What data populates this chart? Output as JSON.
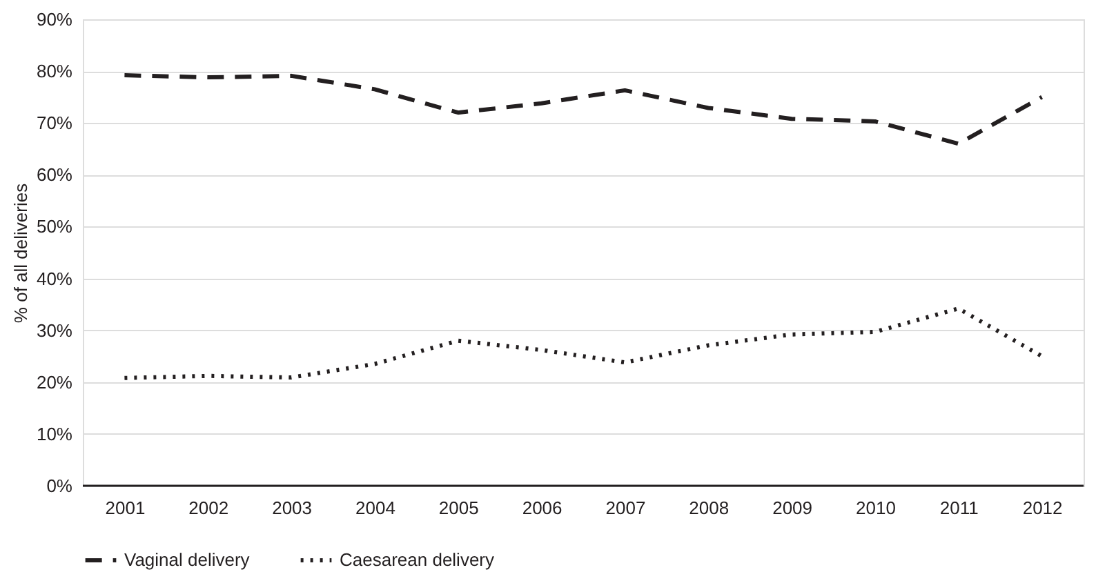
{
  "chart_data": {
    "type": "line",
    "ylabel": "% of all deliveries",
    "categories": [
      "2001",
      "2002",
      "2003",
      "2004",
      "2005",
      "2006",
      "2007",
      "2008",
      "2009",
      "2010",
      "2011",
      "2012"
    ],
    "series": [
      {
        "name": "Vaginal delivery",
        "color": "#231f20",
        "line_style": "dashed",
        "values": [
          79.2,
          78.8,
          79.1,
          76.5,
          72.0,
          73.8,
          76.3,
          72.9,
          70.8,
          70.3,
          66.0,
          75.0
        ]
      },
      {
        "name": "Caesarean delivery",
        "color": "#231f20",
        "line_style": "dotted",
        "values": [
          20.8,
          21.2,
          20.9,
          23.5,
          28.0,
          26.2,
          23.8,
          27.1,
          29.2,
          29.7,
          34.2,
          25.0
        ]
      }
    ],
    "ylim": [
      0,
      90
    ],
    "yticks": [
      {
        "value": 0,
        "label": "0%"
      },
      {
        "value": 10,
        "label": "10%"
      },
      {
        "value": 20,
        "label": "20%"
      },
      {
        "value": 30,
        "label": "30%"
      },
      {
        "value": 40,
        "label": "40%"
      },
      {
        "value": 50,
        "label": "50%"
      },
      {
        "value": 60,
        "label": "60%"
      },
      {
        "value": 70,
        "label": "70%"
      },
      {
        "value": 80,
        "label": "80%"
      },
      {
        "value": 90,
        "label": "90%"
      }
    ],
    "grid": "y",
    "legend": "bottom",
    "marker": "none"
  }
}
